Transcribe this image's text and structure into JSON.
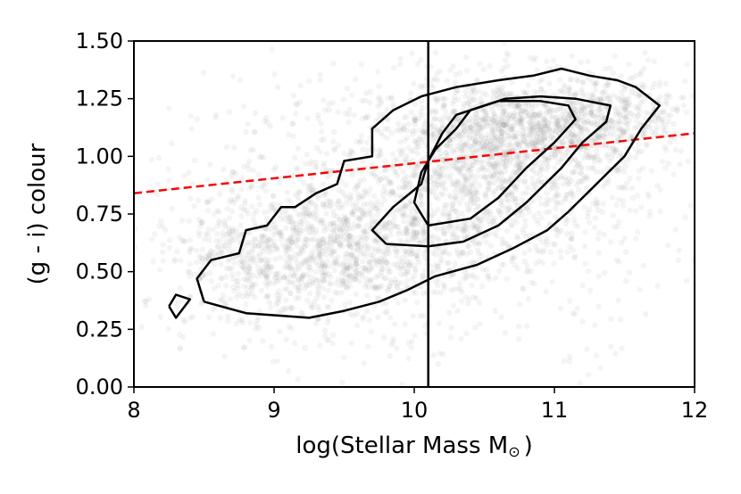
{
  "chart_data": {
    "type": "scatter",
    "title": "",
    "xlabel": "log(Stellar Mass M",
    "xlabel_symbol": "⊙",
    "xlabel_close": ")",
    "ylabel": "(g - i) colour",
    "xlim": [
      8,
      12
    ],
    "ylim": [
      0,
      1.5
    ],
    "xticks": [
      8,
      9,
      10,
      11,
      12
    ],
    "xtick_labels": [
      "8",
      "9",
      "10",
      "11",
      "12"
    ],
    "yticks": [
      0,
      0.25,
      0.5,
      0.75,
      1.0,
      1.25,
      1.5
    ],
    "ytick_labels": [
      "0.00",
      "0.25",
      "0.50",
      "0.75",
      "1.00",
      "1.25",
      "1.50"
    ],
    "grid": false,
    "legend": "none",
    "scatter_color": "#808080",
    "vertical_line": {
      "x": 10.1,
      "color": "#000000"
    },
    "dividing_line": {
      "x": [
        8,
        12
      ],
      "y": [
        0.84,
        1.1
      ],
      "style": "dashed",
      "color": "#ff0000"
    },
    "density_clusters": [
      {
        "cx": 10.5,
        "cy": 0.95,
        "sx": 0.55,
        "sy": 0.2,
        "n": 1200
      },
      {
        "cx": 10.85,
        "cy": 1.12,
        "sx": 0.45,
        "sy": 0.1,
        "n": 700
      },
      {
        "cx": 9.5,
        "cy": 0.62,
        "sx": 0.55,
        "sy": 0.14,
        "n": 900
      },
      {
        "cx": 9.0,
        "cy": 0.5,
        "sx": 0.45,
        "sy": 0.14,
        "n": 350
      },
      {
        "cx": 11.4,
        "cy": 1.2,
        "sx": 0.3,
        "sy": 0.09,
        "n": 250
      },
      {
        "cx": 10.0,
        "cy": 0.75,
        "sx": 1.1,
        "sy": 0.35,
        "n": 700
      }
    ],
    "contours": [
      {
        "level": "outer",
        "points": [
          [
            8.5,
            0.37
          ],
          [
            8.8,
            0.32
          ],
          [
            9.25,
            0.3
          ],
          [
            9.5,
            0.33
          ],
          [
            9.75,
            0.37
          ],
          [
            9.95,
            0.42
          ],
          [
            10.15,
            0.48
          ],
          [
            10.45,
            0.53
          ],
          [
            10.7,
            0.6
          ],
          [
            10.95,
            0.68
          ],
          [
            11.1,
            0.76
          ],
          [
            11.3,
            0.88
          ],
          [
            11.5,
            1.0
          ],
          [
            11.62,
            1.12
          ],
          [
            11.75,
            1.22
          ],
          [
            11.58,
            1.3
          ],
          [
            11.45,
            1.33
          ],
          [
            11.25,
            1.35
          ],
          [
            11.05,
            1.38
          ],
          [
            10.85,
            1.35
          ],
          [
            10.6,
            1.33
          ],
          [
            10.3,
            1.3
          ],
          [
            10.05,
            1.26
          ],
          [
            9.85,
            1.2
          ],
          [
            9.7,
            1.12
          ],
          [
            9.7,
            1.0
          ],
          [
            9.5,
            0.98
          ],
          [
            9.45,
            0.88
          ],
          [
            9.3,
            0.84
          ],
          [
            9.15,
            0.78
          ],
          [
            9.05,
            0.78
          ],
          [
            8.95,
            0.7
          ],
          [
            8.8,
            0.68
          ],
          [
            8.75,
            0.58
          ],
          [
            8.55,
            0.55
          ],
          [
            8.45,
            0.47
          ],
          [
            8.5,
            0.37
          ]
        ]
      },
      {
        "level": "inner-1",
        "points": [
          [
            9.8,
            0.62
          ],
          [
            10.1,
            0.61
          ],
          [
            10.35,
            0.63
          ],
          [
            10.6,
            0.7
          ],
          [
            10.8,
            0.8
          ],
          [
            11.05,
            0.95
          ],
          [
            11.2,
            1.06
          ],
          [
            11.37,
            1.15
          ],
          [
            11.4,
            1.22
          ],
          [
            11.15,
            1.25
          ],
          [
            10.9,
            1.26
          ],
          [
            10.65,
            1.25
          ],
          [
            10.3,
            1.18
          ],
          [
            10.2,
            1.1
          ],
          [
            10.1,
            0.98
          ],
          [
            10.05,
            0.88
          ],
          [
            9.85,
            0.78
          ],
          [
            9.7,
            0.68
          ],
          [
            9.8,
            0.62
          ]
        ]
      },
      {
        "level": "inner-2",
        "points": [
          [
            10.1,
            0.7
          ],
          [
            10.4,
            0.73
          ],
          [
            10.6,
            0.82
          ],
          [
            10.8,
            0.95
          ],
          [
            11.0,
            1.06
          ],
          [
            11.15,
            1.16
          ],
          [
            11.1,
            1.22
          ],
          [
            10.9,
            1.24
          ],
          [
            10.6,
            1.24
          ],
          [
            10.4,
            1.2
          ],
          [
            10.3,
            1.12
          ],
          [
            10.15,
            1.03
          ],
          [
            10.05,
            0.93
          ],
          [
            10.0,
            0.8
          ],
          [
            10.1,
            0.7
          ]
        ]
      },
      {
        "level": "island",
        "points": [
          [
            8.25,
            0.35
          ],
          [
            8.3,
            0.3
          ],
          [
            8.4,
            0.38
          ],
          [
            8.3,
            0.4
          ],
          [
            8.25,
            0.35
          ]
        ]
      }
    ]
  }
}
